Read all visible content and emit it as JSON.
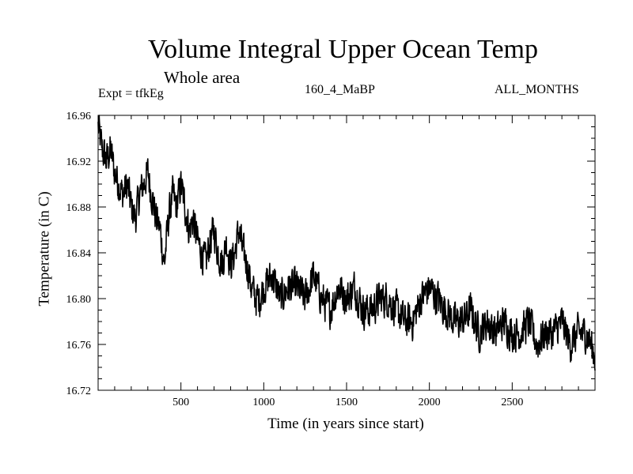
{
  "chart_data": {
    "type": "line",
    "title": "Volume Integral Upper Ocean Temp",
    "subtitle": "Whole area",
    "annotations": {
      "experiment": "Expt = tfkEg",
      "run": "160_4_MaBP",
      "months": "ALL_MONTHS"
    },
    "xlabel": "Time (in years since start)",
    "ylabel": "Temperature (in C)",
    "xlim": [
      0,
      3000
    ],
    "ylim": [
      16.72,
      16.96
    ],
    "x_ticks": [
      500,
      1000,
      1500,
      2000,
      2500
    ],
    "x_tick_labels": [
      "500",
      "1000",
      "1500",
      "2000",
      "2500"
    ],
    "y_ticks": [
      16.72,
      16.76,
      16.8,
      16.84,
      16.88,
      16.92,
      16.96
    ],
    "y_tick_labels": [
      "16.72",
      "16.76",
      "16.80",
      "16.84",
      "16.88",
      "16.92",
      "16.96"
    ],
    "grid": false,
    "line_color": "#000000",
    "series": [
      {
        "x": [
          0,
          25,
          50,
          75,
          100,
          125,
          150,
          175,
          200,
          225,
          250,
          275,
          300,
          325,
          350,
          375,
          400,
          425,
          450,
          475,
          500,
          525,
          550,
          575,
          600,
          625,
          650,
          675,
          700,
          725,
          750,
          775,
          800,
          825,
          850,
          875,
          900,
          925,
          950,
          975,
          1000,
          1050,
          1100,
          1150,
          1200,
          1250,
          1300,
          1350,
          1400,
          1450,
          1500,
          1550,
          1600,
          1650,
          1700,
          1750,
          1800,
          1850,
          1900,
          1950,
          2000,
          2050,
          2100,
          2150,
          2200,
          2250,
          2300,
          2350,
          2400,
          2450,
          2500,
          2550,
          2600,
          2650,
          2700,
          2750,
          2800,
          2850,
          2900,
          2950,
          3000
        ],
        "values": [
          16.95,
          16.93,
          16.92,
          16.93,
          16.91,
          16.9,
          16.89,
          16.9,
          16.88,
          16.87,
          16.89,
          16.9,
          16.91,
          16.89,
          16.87,
          16.86,
          16.83,
          16.87,
          16.89,
          16.88,
          16.9,
          16.88,
          16.86,
          16.87,
          16.85,
          16.84,
          16.83,
          16.85,
          16.86,
          16.84,
          16.83,
          16.85,
          16.83,
          16.84,
          16.86,
          16.84,
          16.83,
          16.81,
          16.8,
          16.8,
          16.81,
          16.82,
          16.8,
          16.81,
          16.81,
          16.8,
          16.82,
          16.8,
          16.79,
          16.81,
          16.8,
          16.81,
          16.79,
          16.79,
          16.8,
          16.8,
          16.79,
          16.78,
          16.78,
          16.8,
          16.81,
          16.8,
          16.79,
          16.78,
          16.78,
          16.79,
          16.77,
          16.78,
          16.77,
          16.78,
          16.77,
          16.77,
          16.78,
          16.76,
          16.77,
          16.77,
          16.78,
          16.76,
          16.77,
          16.77,
          16.75
        ]
      }
    ]
  }
}
